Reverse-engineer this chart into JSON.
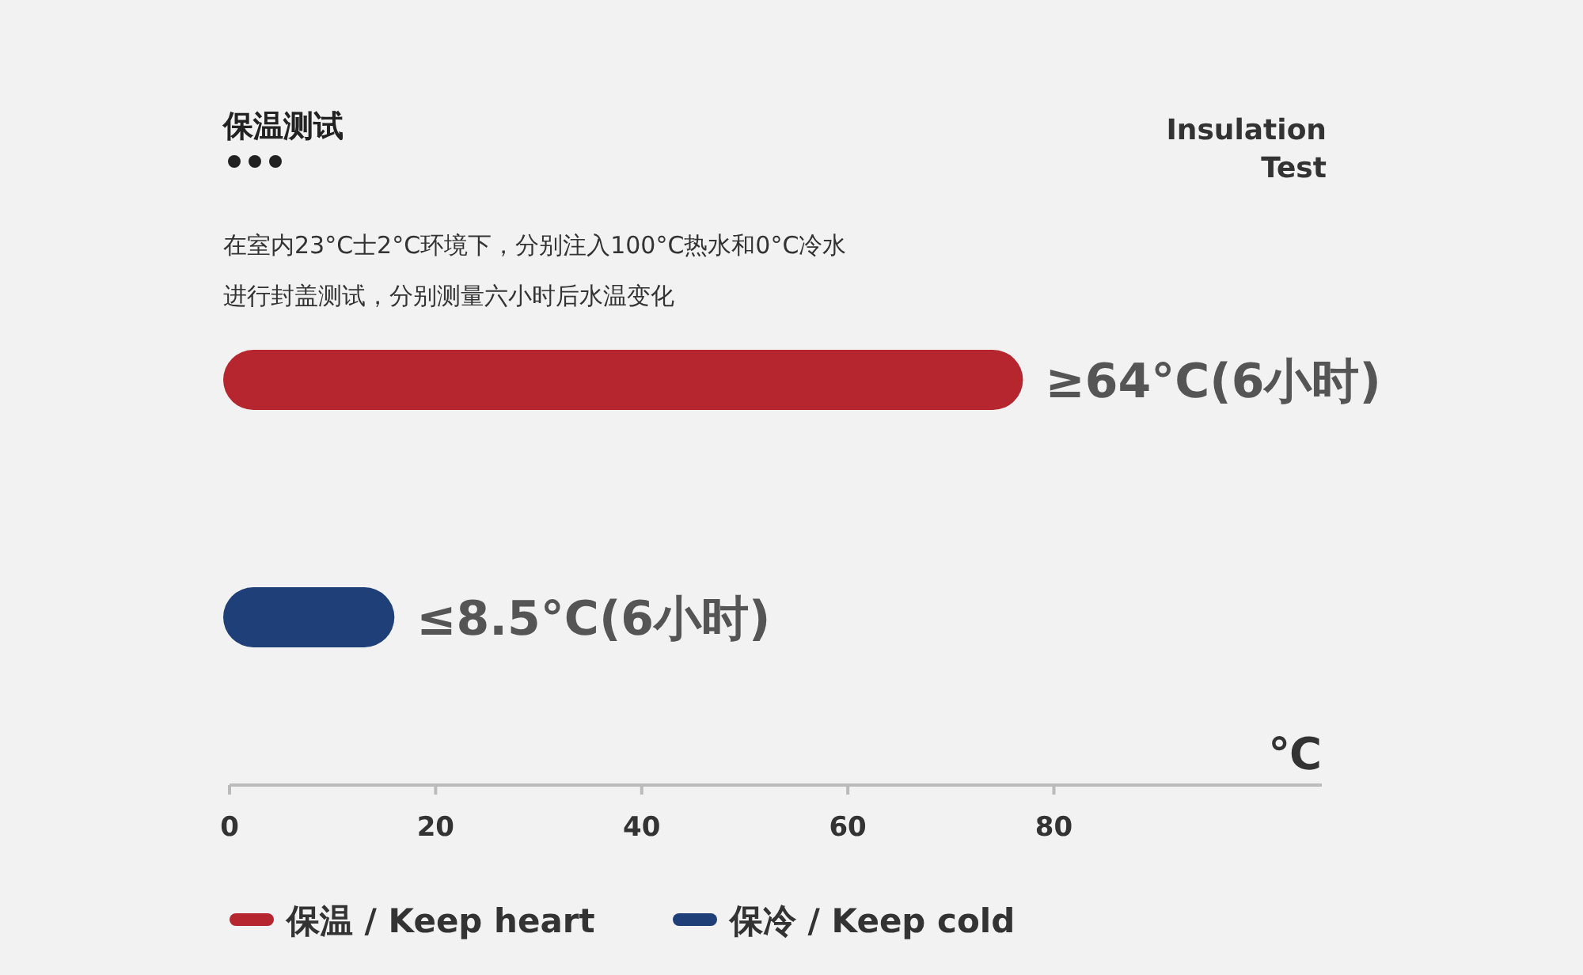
{
  "chart_data": {
    "type": "bar",
    "orientation": "horizontal",
    "title": "保温测试",
    "subtitle": "Insulation Test",
    "annotations": [
      "在室内23°C士2°C环境下，分别注入100°C热水和0°C冷水",
      "进行封盖测试，分别测量六小时后水温变化"
    ],
    "categories": [
      null,
      null
    ],
    "xlabel": "℃",
    "xlim": [
      0,
      106
    ],
    "xticks": [
      0,
      20,
      40,
      60,
      80
    ],
    "stacked": true,
    "legend": "bottom left",
    "tick_labels": "x",
    "series": [
      {
        "name": "保温 / Keep heart",
        "color": "#b5262f",
        "values": [
          77,
          null
        ],
        "value_labels": [
          "≥64°C(6小时)",
          null
        ]
      },
      {
        "name": "保冷 / Keep cold",
        "color": "#1f3f78",
        "values": [
          null,
          16
        ],
        "value_labels": [
          null,
          "≤8.5°C(6小时)"
        ]
      }
    ]
  }
}
